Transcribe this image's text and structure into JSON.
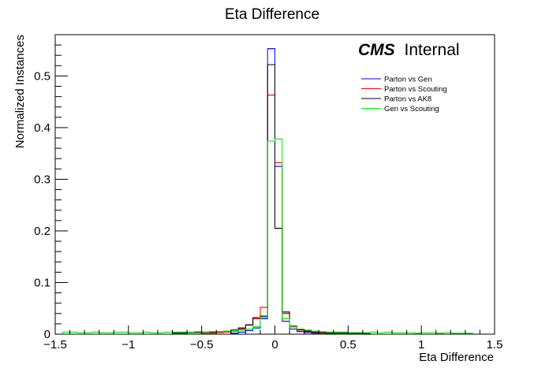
{
  "chart_data": {
    "type": "histogram",
    "title": "Eta Difference",
    "xlabel": "Eta Difference",
    "ylabel": "Normalized Instances",
    "xlim": [
      -1.5,
      1.5
    ],
    "ylim": [
      0,
      0.58
    ],
    "bin_width": 0.05,
    "x_ticks": [
      -1.5,
      -1,
      -0.5,
      0,
      0.5,
      1,
      1.5
    ],
    "x_tick_labels": [
      "−1.5",
      "−1",
      "−0.5",
      "0",
      "0.5",
      "1",
      "1.5"
    ],
    "y_ticks": [
      0,
      0.1,
      0.2,
      0.3,
      0.4,
      0.5
    ],
    "y_tick_labels": [
      "0",
      "0.1",
      "0.2",
      "0.3",
      "0.4",
      "0.5"
    ],
    "grid": false,
    "legend_position": "top-right",
    "annotation": {
      "bold": "CMS",
      "normal": "Internal"
    },
    "series": [
      {
        "name": "Parton vs Gen",
        "color": "#0000ff",
        "bins": [
          {
            "x": -0.3,
            "y": 0.002
          },
          {
            "x": -0.25,
            "y": 0.004
          },
          {
            "x": -0.2,
            "y": 0.007
          },
          {
            "x": -0.15,
            "y": 0.012
          },
          {
            "x": -0.1,
            "y": 0.03
          },
          {
            "x": -0.05,
            "y": 0.553
          },
          {
            "x": 0.0,
            "y": 0.325
          },
          {
            "x": 0.05,
            "y": 0.025
          },
          {
            "x": 0.1,
            "y": 0.01
          },
          {
            "x": 0.15,
            "y": 0.005
          },
          {
            "x": 0.2,
            "y": 0.003
          },
          {
            "x": 0.25,
            "y": 0.002
          }
        ]
      },
      {
        "name": "Parton vs Scouting",
        "color": "#ff0000",
        "bins": [
          {
            "x": -0.5,
            "y": 0.002
          },
          {
            "x": -0.45,
            "y": 0.002
          },
          {
            "x": -0.4,
            "y": 0.003
          },
          {
            "x": -0.35,
            "y": 0.004
          },
          {
            "x": -0.3,
            "y": 0.006
          },
          {
            "x": -0.25,
            "y": 0.01
          },
          {
            "x": -0.2,
            "y": 0.018
          },
          {
            "x": -0.15,
            "y": 0.03
          },
          {
            "x": -0.1,
            "y": 0.052
          },
          {
            "x": -0.05,
            "y": 0.463
          },
          {
            "x": 0.0,
            "y": 0.332
          },
          {
            "x": 0.05,
            "y": 0.04
          },
          {
            "x": 0.1,
            "y": 0.016
          },
          {
            "x": 0.15,
            "y": 0.008
          },
          {
            "x": 0.2,
            "y": 0.005
          },
          {
            "x": 0.25,
            "y": 0.003
          },
          {
            "x": 0.3,
            "y": 0.002
          }
        ]
      },
      {
        "name": "Parton vs AK8",
        "color": "#000000",
        "bins": [
          {
            "x": -0.7,
            "y": 0.002
          },
          {
            "x": -0.65,
            "y": 0.002
          },
          {
            "x": -0.6,
            "y": 0.003
          },
          {
            "x": -0.55,
            "y": 0.003
          },
          {
            "x": -0.5,
            "y": 0.004
          },
          {
            "x": -0.45,
            "y": 0.004
          },
          {
            "x": -0.4,
            "y": 0.005
          },
          {
            "x": -0.35,
            "y": 0.006
          },
          {
            "x": -0.3,
            "y": 0.008
          },
          {
            "x": -0.25,
            "y": 0.012
          },
          {
            "x": -0.2,
            "y": 0.018
          },
          {
            "x": -0.15,
            "y": 0.032
          },
          {
            "x": -0.1,
            "y": 0.035
          },
          {
            "x": -0.05,
            "y": 0.522
          },
          {
            "x": 0.0,
            "y": 0.205
          },
          {
            "x": 0.05,
            "y": 0.043
          },
          {
            "x": 0.1,
            "y": 0.014
          },
          {
            "x": 0.15,
            "y": 0.009
          },
          {
            "x": 0.2,
            "y": 0.006
          },
          {
            "x": 0.25,
            "y": 0.004
          },
          {
            "x": 0.3,
            "y": 0.003
          },
          {
            "x": 0.35,
            "y": 0.002
          },
          {
            "x": 0.4,
            "y": 0.002
          },
          {
            "x": 0.45,
            "y": 0.002
          },
          {
            "x": 0.5,
            "y": 0.002
          },
          {
            "x": 0.55,
            "y": 0.002
          },
          {
            "x": 0.6,
            "y": 0.001
          }
        ]
      },
      {
        "name": "Gen vs Scouting",
        "color": "#00ee00",
        "bins": [
          {
            "x": -1.45,
            "y": 0.004
          },
          {
            "x": -1.4,
            "y": 0.004
          },
          {
            "x": -1.35,
            "y": 0.003
          },
          {
            "x": -1.3,
            "y": 0.003
          },
          {
            "x": -1.25,
            "y": 0.004
          },
          {
            "x": -1.2,
            "y": 0.003
          },
          {
            "x": -1.15,
            "y": 0.003
          },
          {
            "x": -1.1,
            "y": 0.004
          },
          {
            "x": -1.05,
            "y": 0.004
          },
          {
            "x": -1.0,
            "y": 0.003
          },
          {
            "x": -0.95,
            "y": 0.003
          },
          {
            "x": -0.9,
            "y": 0.004
          },
          {
            "x": -0.85,
            "y": 0.003
          },
          {
            "x": -0.8,
            "y": 0.003
          },
          {
            "x": -0.75,
            "y": 0.004
          },
          {
            "x": -0.7,
            "y": 0.004
          },
          {
            "x": -0.65,
            "y": 0.004
          },
          {
            "x": -0.6,
            "y": 0.004
          },
          {
            "x": -0.55,
            "y": 0.005
          },
          {
            "x": -0.5,
            "y": 0.004
          },
          {
            "x": -0.45,
            "y": 0.005
          },
          {
            "x": -0.4,
            "y": 0.005
          },
          {
            "x": -0.35,
            "y": 0.006
          },
          {
            "x": -0.3,
            "y": 0.007
          },
          {
            "x": -0.25,
            "y": 0.008
          },
          {
            "x": -0.2,
            "y": 0.01
          },
          {
            "x": -0.15,
            "y": 0.015
          },
          {
            "x": -0.1,
            "y": 0.033
          },
          {
            "x": -0.05,
            "y": 0.374
          },
          {
            "x": 0.0,
            "y": 0.378
          },
          {
            "x": 0.05,
            "y": 0.03
          },
          {
            "x": 0.1,
            "y": 0.014
          },
          {
            "x": 0.15,
            "y": 0.01
          },
          {
            "x": 0.2,
            "y": 0.008
          },
          {
            "x": 0.25,
            "y": 0.006
          },
          {
            "x": 0.3,
            "y": 0.005
          },
          {
            "x": 0.35,
            "y": 0.004
          },
          {
            "x": 0.4,
            "y": 0.004
          },
          {
            "x": 0.45,
            "y": 0.004
          },
          {
            "x": 0.5,
            "y": 0.003
          },
          {
            "x": 0.55,
            "y": 0.003
          },
          {
            "x": 0.6,
            "y": 0.003
          },
          {
            "x": 0.65,
            "y": 0.004
          },
          {
            "x": 0.7,
            "y": 0.003
          },
          {
            "x": 0.75,
            "y": 0.004
          },
          {
            "x": 0.8,
            "y": 0.003
          },
          {
            "x": 0.85,
            "y": 0.003
          },
          {
            "x": 0.9,
            "y": 0.003
          },
          {
            "x": 0.95,
            "y": 0.002
          },
          {
            "x": 1.0,
            "y": 0.003
          },
          {
            "x": 1.05,
            "y": 0.003
          },
          {
            "x": 1.1,
            "y": 0.002
          },
          {
            "x": 1.15,
            "y": 0.003
          },
          {
            "x": 1.2,
            "y": 0.002
          },
          {
            "x": 1.25,
            "y": 0.002
          },
          {
            "x": 1.3,
            "y": 0.002
          }
        ]
      }
    ]
  }
}
